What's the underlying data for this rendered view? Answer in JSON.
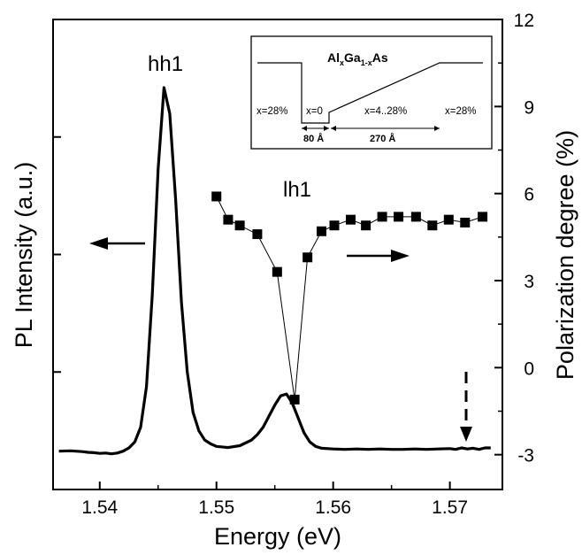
{
  "chart_data": {
    "type": "line",
    "xlabel": "Energy (eV)",
    "ylabel": "PL Intensity (a.u.)",
    "y2label": "Polarization degree (%)",
    "xlim": [
      1.536,
      1.5745
    ],
    "x_ticks": [
      1.54,
      1.55,
      1.56,
      1.57
    ],
    "x_tick_labels": [
      "1.54",
      "1.55",
      "1.56",
      "1.57"
    ],
    "y2lim": [
      -4.2,
      12
    ],
    "y2_ticks": [
      -3,
      0,
      3,
      6,
      9,
      12
    ],
    "y2_tick_labels": [
      "-3",
      "0",
      "3",
      "6",
      "9",
      "12"
    ],
    "y_scale": "arbitrary units, no tick labels",
    "y_ticks": [
      0.25,
      0.5,
      0.75
    ],
    "grid": false,
    "series": [
      {
        "axis": "left",
        "style": "thick line",
        "x": [
          1.5365,
          1.5375,
          1.5385,
          1.539,
          1.5395,
          1.54,
          1.5405,
          1.541,
          1.5415,
          1.542,
          1.5425,
          1.543,
          1.5435,
          1.544,
          1.5445,
          1.545,
          1.5455,
          1.546,
          1.5465,
          1.547,
          1.5475,
          1.548,
          1.5485,
          1.549,
          1.5495,
          1.55,
          1.551,
          1.552,
          1.553,
          1.5535,
          1.554,
          1.5545,
          1.555,
          1.5555,
          1.556,
          1.5565,
          1.557,
          1.5575,
          1.558,
          1.5585,
          1.559,
          1.56,
          1.561,
          1.562,
          1.563,
          1.564,
          1.565,
          1.566,
          1.567,
          1.568,
          1.569,
          1.57,
          1.5705,
          1.571,
          1.5715,
          1.572,
          1.5725,
          1.573,
          1.5735
        ],
        "y": [
          0.015,
          0.016,
          0.014,
          0.012,
          0.011,
          0.009,
          0.01,
          0.008,
          0.01,
          0.015,
          0.024,
          0.04,
          0.08,
          0.19,
          0.44,
          0.78,
          1.0,
          0.93,
          0.7,
          0.42,
          0.23,
          0.12,
          0.07,
          0.045,
          0.035,
          0.028,
          0.025,
          0.03,
          0.045,
          0.06,
          0.08,
          0.11,
          0.14,
          0.165,
          0.17,
          0.145,
          0.105,
          0.065,
          0.04,
          0.028,
          0.023,
          0.021,
          0.02,
          0.021,
          0.02,
          0.021,
          0.02,
          0.02,
          0.021,
          0.02,
          0.021,
          0.022,
          0.02,
          0.024,
          0.021,
          0.023,
          0.02,
          0.024,
          0.024
        ]
      },
      {
        "axis": "right",
        "style": "squares with thin line",
        "x": [
          1.55,
          1.551,
          1.552,
          1.5535,
          1.5552,
          1.5567,
          1.5578,
          1.559,
          1.5601,
          1.5615,
          1.5628,
          1.5642,
          1.5656,
          1.5671,
          1.5685,
          1.5699,
          1.5713,
          1.5728
        ],
        "y": [
          5.9,
          5.1,
          4.9,
          4.6,
          3.3,
          -1.1,
          3.8,
          4.7,
          4.9,
          5.1,
          4.9,
          5.2,
          5.2,
          5.2,
          4.9,
          5.1,
          5.0,
          5.2
        ]
      }
    ],
    "annotations": {
      "hh1": "hh1",
      "lh1": "lh1",
      "inset": {
        "title_main": "Al",
        "title_sub1": "x",
        "title_mid": "Ga",
        "title_sub2": "1-x",
        "title_end": "As",
        "label_left": "x=28%",
        "label_well": "x=0",
        "label_ramp": "x=4..28%",
        "label_right": "x=28%",
        "dim_well": "80 Å",
        "dim_ramp": "270 Å"
      }
    }
  }
}
